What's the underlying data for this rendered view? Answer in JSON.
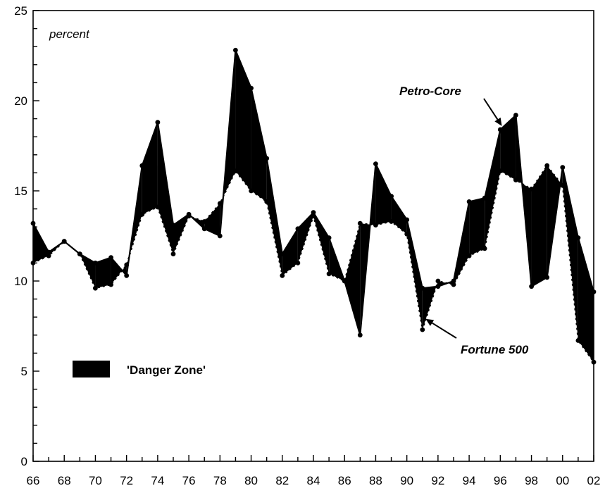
{
  "chart_data": {
    "type": "line",
    "ylabel": "percent",
    "ylim": [
      0,
      25
    ],
    "y_ticks": [
      "0",
      "5",
      "10",
      "15",
      "20",
      "25"
    ],
    "xlim": [
      1966,
      2002
    ],
    "x_ticks": [
      "66",
      "68",
      "70",
      "72",
      "74",
      "76",
      "78",
      "80",
      "82",
      "84",
      "86",
      "88",
      "90",
      "92",
      "94",
      "96",
      "98",
      "00",
      "02"
    ],
    "x": [
      1966,
      1967,
      1968,
      1969,
      1970,
      1971,
      1972,
      1973,
      1974,
      1975,
      1976,
      1977,
      1978,
      1979,
      1980,
      1981,
      1982,
      1983,
      1984,
      1985,
      1986,
      1987,
      1988,
      1989,
      1990,
      1991,
      1992,
      1993,
      1994,
      1995,
      1996,
      1997,
      1998,
      1999,
      2000,
      2001,
      2002
    ],
    "series": [
      {
        "name": "Petro-Core",
        "style": "solid",
        "values": [
          13.2,
          11.6,
          12.2,
          11.5,
          11.0,
          11.3,
          10.3,
          16.4,
          18.8,
          13.1,
          13.7,
          12.9,
          12.5,
          22.8,
          20.7,
          16.8,
          11.5,
          12.9,
          13.8,
          12.4,
          10.0,
          7.0,
          16.5,
          14.7,
          13.4,
          9.6,
          9.7,
          10.0,
          14.4,
          14.6,
          18.4,
          19.2,
          9.7,
          10.2,
          16.3,
          12.4,
          9.4
        ]
      },
      {
        "name": "Fortune 500",
        "style": "dashed",
        "values": [
          11.0,
          11.4,
          12.2,
          11.5,
          9.6,
          9.8,
          10.9,
          13.7,
          14.1,
          11.5,
          13.6,
          13.3,
          14.3,
          16.1,
          15.0,
          14.4,
          10.3,
          11.0,
          13.6,
          10.4,
          10.0,
          13.2,
          13.1,
          13.3,
          12.6,
          7.3,
          10.0,
          9.8,
          11.4,
          11.8,
          16.1,
          15.6,
          15.1,
          16.4,
          15.3,
          6.7,
          5.5
        ]
      }
    ],
    "legend": {
      "label": "'Danger Zone'",
      "color": "#000000"
    },
    "annotations": [
      {
        "text": "Petro-Core",
        "target_x": 1996.1,
        "target_y": 18.6
      },
      {
        "text": "Fortune 500",
        "target_x": 1991.2,
        "target_y": 7.9
      }
    ],
    "grid": false
  }
}
